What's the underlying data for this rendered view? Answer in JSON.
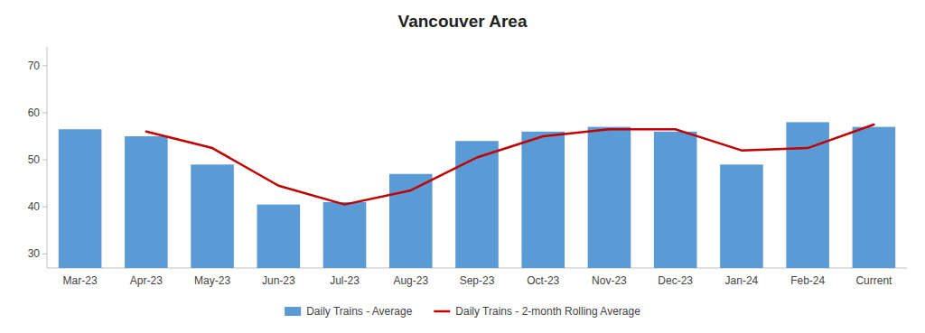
{
  "chart_data": {
    "type": "bar",
    "title": "Vancouver Area",
    "categories": [
      "Mar-23",
      "Apr-23",
      "May-23",
      "Jun-23",
      "Jul-23",
      "Aug-23",
      "Sep-23",
      "Oct-23",
      "Nov-23",
      "Dec-23",
      "Jan-24",
      "Feb-24",
      "Current"
    ],
    "series": [
      {
        "name": "Daily Trains - Average",
        "type": "bar",
        "color": "#5B9BD5",
        "values": [
          56.5,
          55.0,
          49.0,
          40.5,
          41.0,
          47.0,
          54.0,
          56.0,
          57.0,
          56.0,
          49.0,
          58.0,
          57.0
        ]
      },
      {
        "name": "Daily Trains - 2-month Rolling Average",
        "type": "line",
        "color": "#C00000",
        "values": [
          null,
          56.0,
          52.5,
          44.5,
          40.5,
          43.5,
          50.5,
          55.0,
          56.5,
          56.5,
          52.0,
          52.5,
          57.5
        ]
      }
    ],
    "ylim": [
      27,
      74
    ],
    "yticks": [
      30,
      40,
      50,
      60,
      70
    ],
    "grid": false,
    "legend": "bottom"
  }
}
